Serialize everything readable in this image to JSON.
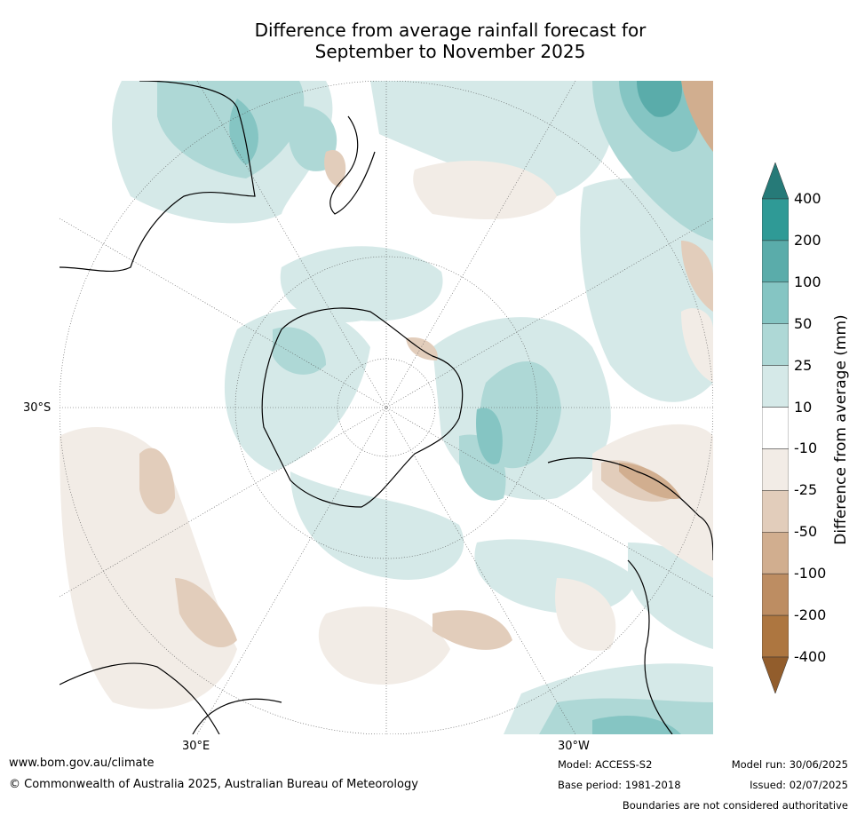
{
  "title_line1": "Difference from average rainfall forecast for",
  "title_line2": "September to November 2025",
  "axis": {
    "lat_label": "30°S",
    "lon_label_left": "30°E",
    "lon_label_right": "30°W"
  },
  "legend": {
    "title": "Difference from average (mm)",
    "labels": [
      "400",
      "200",
      "100",
      "50",
      "25",
      "10",
      "-10",
      "-25",
      "-50",
      "-100",
      "-200",
      "-400"
    ],
    "colors": [
      "#267a78",
      "#2f9a96",
      "#5aacaa",
      "#85c5c3",
      "#aed8d6",
      "#d5e9e8",
      "#ffffff",
      "#f2ece6",
      "#e2cdbb",
      "#d1ae8f",
      "#bd8d62",
      "#ad7640",
      "#925d2c"
    ]
  },
  "map": {
    "projection": "south-polar-stereographic",
    "regions": [
      "Antarctica",
      "Australia",
      "New Zealand",
      "South America",
      "Southern Africa"
    ]
  },
  "footer": {
    "website": "www.bom.gov.au/climate",
    "copyright": "© Commonwealth of Australia 2025, Australian Bureau of Meteorology",
    "model": "Model: ACCESS-S2",
    "base_period": "Base period: 1981-2018",
    "model_run": "Model run: 30/06/2025",
    "issued": "Issued: 02/07/2025",
    "boundaries": "Boundaries are not considered authoritative"
  }
}
